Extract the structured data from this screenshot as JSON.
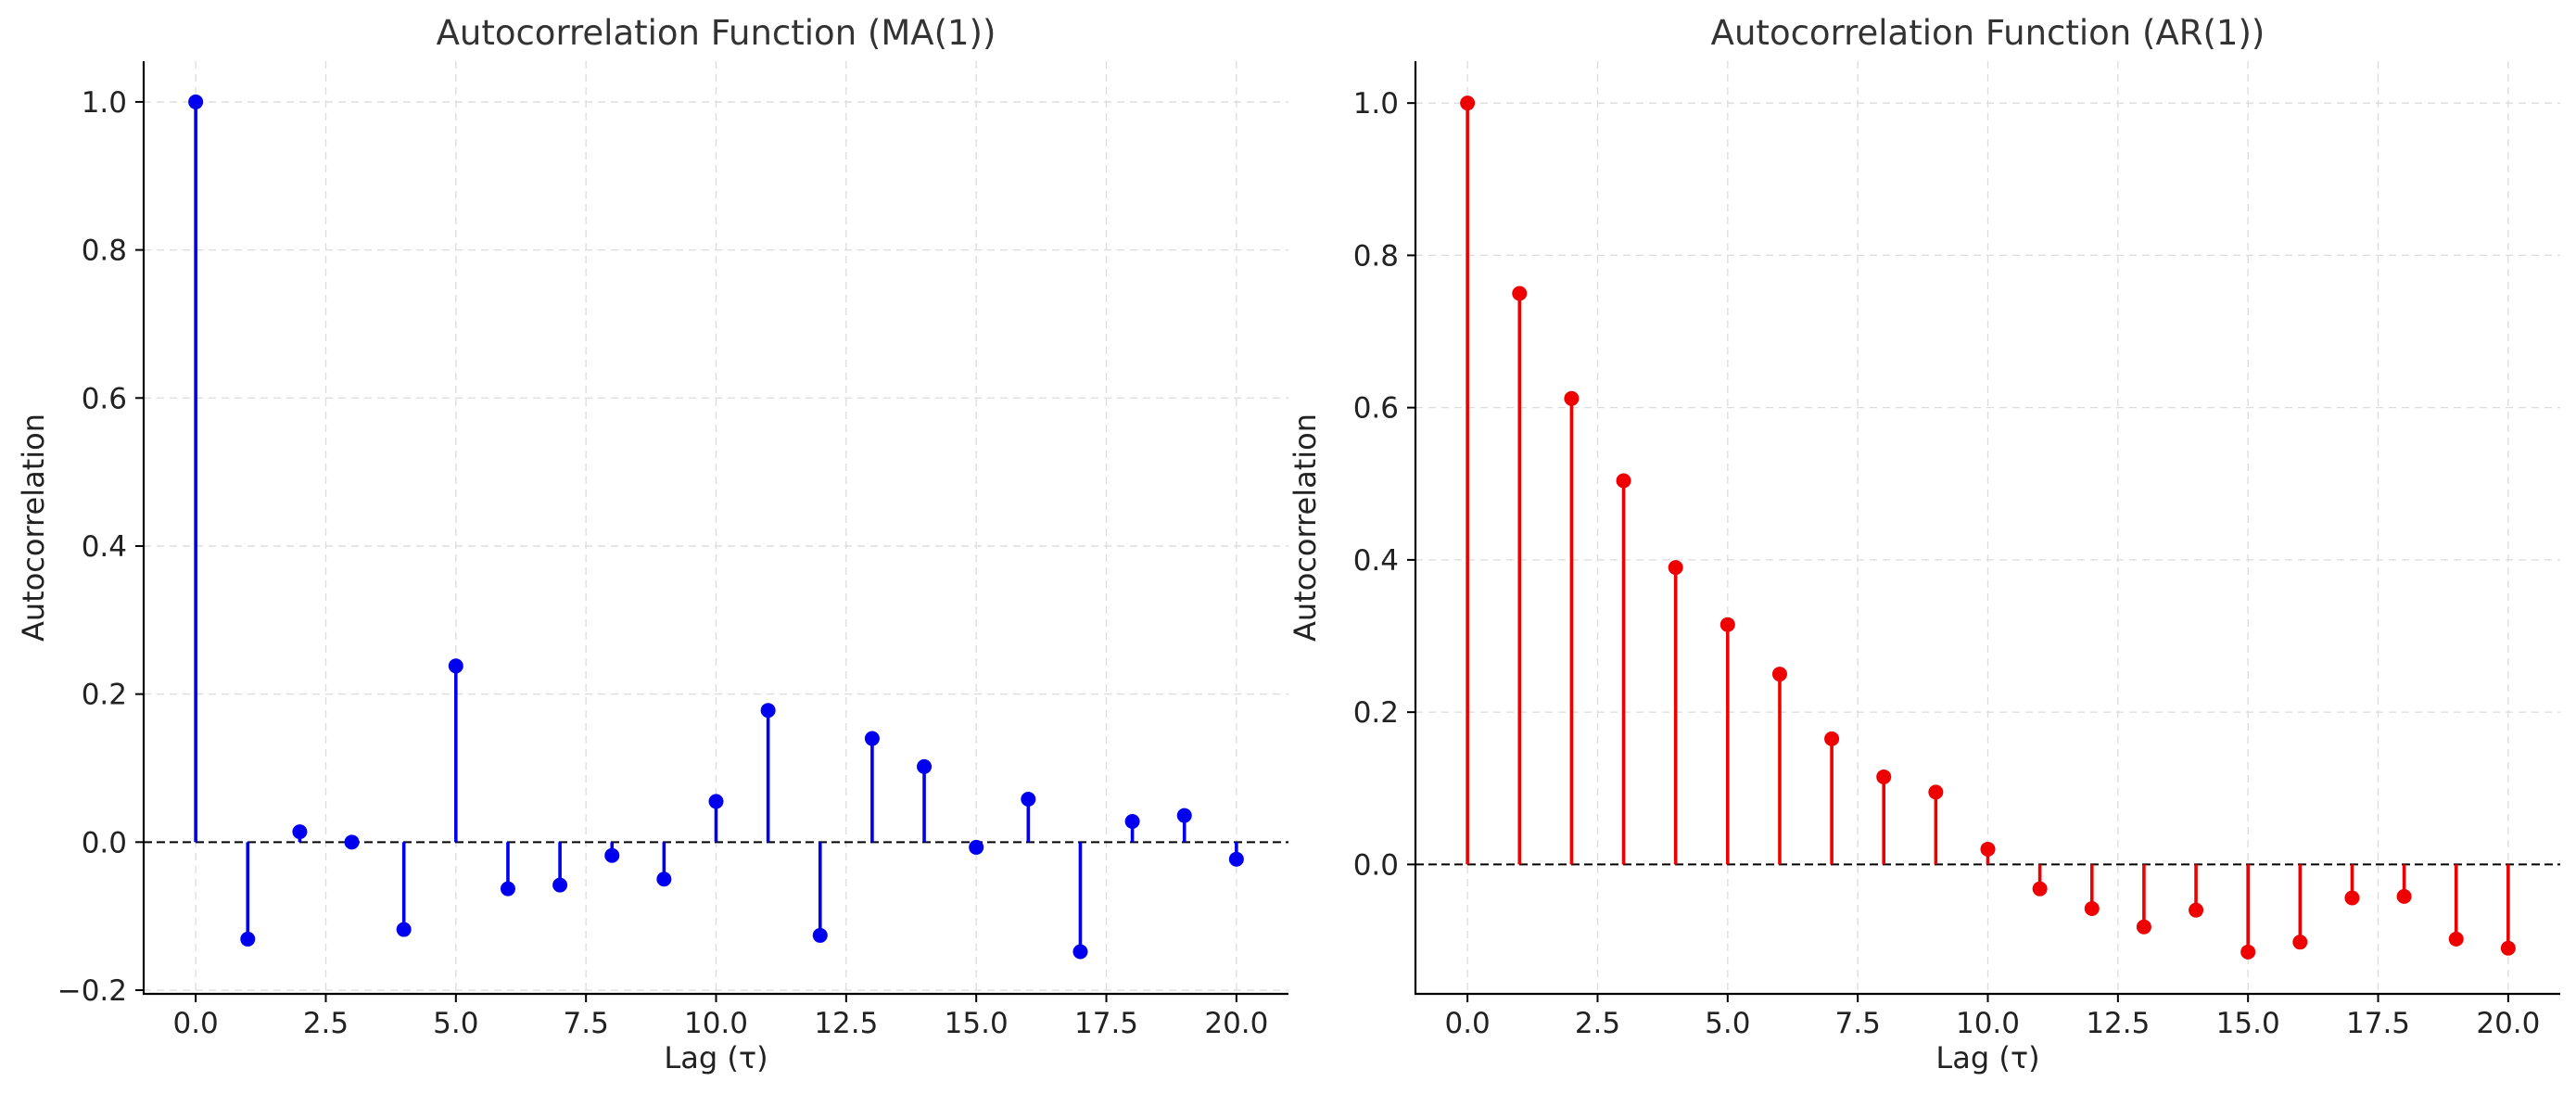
{
  "chart_data": [
    {
      "type": "stem",
      "title": "Autocorrelation Function (MA(1))",
      "xlabel": "Lag (τ)",
      "ylabel": "Autocorrelation",
      "color": "#0000ee",
      "xlim": [
        -1,
        21
      ],
      "ylim": [
        -0.205,
        1.055
      ],
      "xticks": [
        0.0,
        2.5,
        5.0,
        7.5,
        10.0,
        12.5,
        15.0,
        17.5,
        20.0
      ],
      "xtick_labels": [
        "0.0",
        "2.5",
        "5.0",
        "7.5",
        "10.0",
        "12.5",
        "15.0",
        "17.5",
        "20.0"
      ],
      "yticks": [
        -0.2,
        0.0,
        0.2,
        0.4,
        0.6,
        0.8,
        1.0
      ],
      "ytick_labels": [
        "−0.2",
        "0.0",
        "0.2",
        "0.4",
        "0.6",
        "0.8",
        "1.0"
      ],
      "grid": true,
      "baseline": 0.0,
      "x": [
        0,
        1,
        2,
        3,
        4,
        5,
        6,
        7,
        8,
        9,
        10,
        11,
        12,
        13,
        14,
        15,
        16,
        17,
        18,
        19,
        20
      ],
      "values": [
        1.0,
        -0.131,
        0.014,
        0.0,
        -0.118,
        0.238,
        -0.063,
        -0.058,
        -0.018,
        -0.05,
        0.055,
        0.178,
        -0.126,
        0.14,
        0.102,
        -0.007,
        0.058,
        -0.148,
        0.028,
        0.036,
        -0.023
      ]
    },
    {
      "type": "stem",
      "title": "Autocorrelation Function (AR(1))",
      "xlabel": "Lag (τ)",
      "ylabel": "Autocorrelation",
      "color": "#ee0000",
      "xlim": [
        -1,
        21
      ],
      "ylim": [
        -0.17,
        1.055
      ],
      "xticks": [
        0.0,
        2.5,
        5.0,
        7.5,
        10.0,
        12.5,
        15.0,
        17.5,
        20.0
      ],
      "xtick_labels": [
        "0.0",
        "2.5",
        "5.0",
        "7.5",
        "10.0",
        "12.5",
        "15.0",
        "17.5",
        "20.0"
      ],
      "yticks": [
        0.0,
        0.2,
        0.4,
        0.6,
        0.8,
        1.0
      ],
      "ytick_labels": [
        "0.0",
        "0.2",
        "0.4",
        "0.6",
        "0.8",
        "1.0"
      ],
      "grid": true,
      "baseline": 0.0,
      "x": [
        0,
        1,
        2,
        3,
        4,
        5,
        6,
        7,
        8,
        9,
        10,
        11,
        12,
        13,
        14,
        15,
        16,
        17,
        18,
        19,
        20
      ],
      "values": [
        1.0,
        0.75,
        0.612,
        0.504,
        0.39,
        0.315,
        0.25,
        0.165,
        0.115,
        0.095,
        0.02,
        -0.032,
        -0.058,
        -0.082,
        -0.06,
        -0.115,
        -0.102,
        -0.044,
        -0.042,
        -0.098,
        -0.11
      ]
    }
  ]
}
